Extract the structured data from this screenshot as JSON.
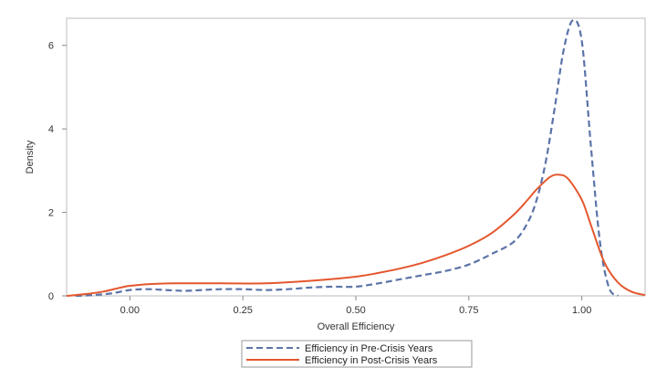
{
  "chart_data": {
    "type": "line",
    "title": "",
    "xlabel": "Overall Efficiency",
    "ylabel": "Density",
    "xlim": [
      -0.14,
      1.14
    ],
    "ylim": [
      0,
      6.65
    ],
    "xticks": [
      0.0,
      0.25,
      0.5,
      0.75,
      1.0
    ],
    "xtick_labels": [
      "0.00",
      "0.25",
      "0.50",
      "0.75",
      "1.00"
    ],
    "yticks": [
      0,
      2,
      4,
      6
    ],
    "ytick_labels": [
      "0",
      "2",
      "4",
      "6"
    ],
    "grid": false,
    "legend_position": "bottom",
    "series": [
      {
        "name": "Efficiency in Pre-Crisis Years",
        "color": "#5b73a8",
        "style": "dashed",
        "x": [
          -0.12,
          -0.08,
          -0.04,
          0.0,
          0.04,
          0.08,
          0.12,
          0.16,
          0.2,
          0.25,
          0.3,
          0.35,
          0.4,
          0.45,
          0.5,
          0.55,
          0.6,
          0.65,
          0.7,
          0.75,
          0.8,
          0.85,
          0.88,
          0.9,
          0.92,
          0.94,
          0.96,
          0.98,
          1.0,
          1.02,
          1.04,
          1.06,
          1.08
        ],
        "y": [
          0.0,
          0.02,
          0.06,
          0.14,
          0.16,
          0.14,
          0.12,
          0.14,
          0.16,
          0.16,
          0.14,
          0.16,
          0.2,
          0.22,
          0.22,
          0.3,
          0.4,
          0.5,
          0.6,
          0.75,
          1.0,
          1.3,
          1.75,
          2.3,
          3.2,
          4.5,
          5.9,
          6.6,
          6.1,
          3.6,
          1.3,
          0.2,
          0.0
        ]
      },
      {
        "name": "Efficiency in Post-Crisis Years",
        "color": "#e4572e",
        "style": "solid",
        "x": [
          -0.14,
          -0.1,
          -0.06,
          -0.02,
          0.0,
          0.04,
          0.1,
          0.2,
          0.3,
          0.4,
          0.5,
          0.55,
          0.6,
          0.65,
          0.7,
          0.75,
          0.8,
          0.85,
          0.88,
          0.9,
          0.93,
          0.95,
          0.97,
          1.0,
          1.02,
          1.05,
          1.08,
          1.11,
          1.14
        ],
        "y": [
          0.0,
          0.04,
          0.1,
          0.2,
          0.24,
          0.28,
          0.3,
          0.3,
          0.3,
          0.36,
          0.46,
          0.55,
          0.66,
          0.8,
          0.98,
          1.2,
          1.5,
          1.95,
          2.3,
          2.55,
          2.85,
          2.9,
          2.8,
          2.3,
          1.7,
          0.8,
          0.32,
          0.1,
          0.02
        ]
      }
    ]
  }
}
